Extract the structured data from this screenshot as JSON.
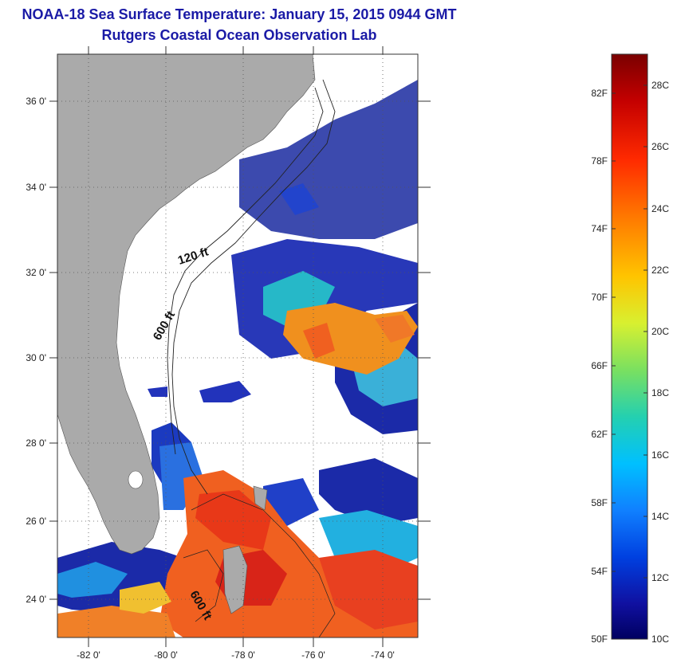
{
  "title": {
    "line1": "NOAA-18 Sea Surface Temperature:  January 15, 2015 0944 GMT",
    "line2": "Rutgers Coastal Ocean Observation Lab"
  },
  "map": {
    "lat_labels": [
      "36 0'",
      "34 0'",
      "32 0'",
      "30 0'",
      "28 0'",
      "26 0'",
      "24 0'"
    ],
    "lon_labels": [
      "-82 0'",
      "-80 0'",
      "-78 0'",
      "-76 0'",
      "-74 0'"
    ],
    "contour_labels": [
      "120 ft",
      "600 ft",
      "600 ft"
    ],
    "colors": {
      "land": "#aaaaaa",
      "cloud": "#ffffff",
      "water_cold": "#1b2aa8",
      "water_warm": "#f05a1e"
    }
  },
  "colorbar": {
    "fahrenheit_labels": [
      "82F",
      "78F",
      "74F",
      "70F",
      "66F",
      "62F",
      "58F",
      "54F",
      "50F"
    ],
    "celsius_labels": [
      "28C",
      "26C",
      "24C",
      "22C",
      "20C",
      "18C",
      "16C",
      "14C",
      "12C",
      "10C"
    ],
    "colormap": [
      "#7a0000",
      "#c40000",
      "#ff2a00",
      "#ff7a00",
      "#ffc400",
      "#d8f030",
      "#7ae060",
      "#24d0b0",
      "#00c0ff",
      "#1080ff",
      "#0040e0",
      "#1010a0",
      "#000060"
    ]
  }
}
